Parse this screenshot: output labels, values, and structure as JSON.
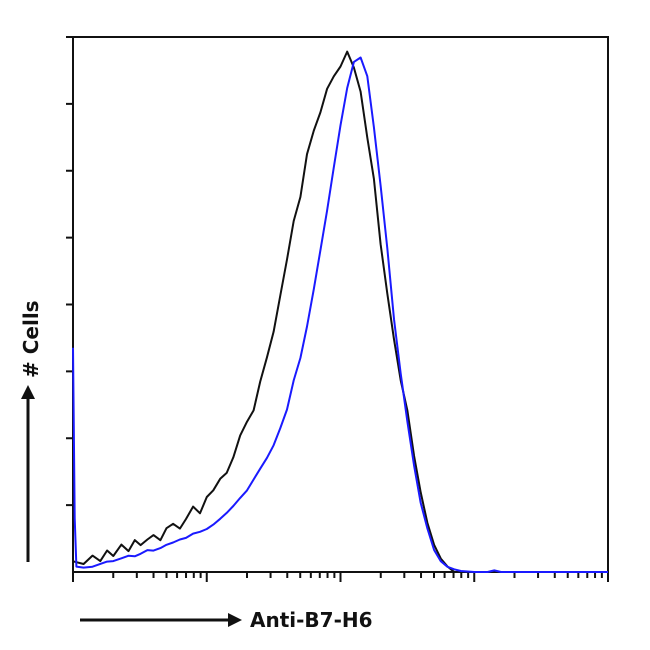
{
  "chart_data": {
    "type": "line",
    "xlabel": "Anti-B7-H6",
    "ylabel": "# Cells",
    "x_scale": "log",
    "xlim": [
      1,
      10000
    ],
    "ylim": [
      0,
      1.0
    ],
    "y_ticks": 8,
    "grid": false,
    "legend": "none",
    "series": [
      {
        "color": "#111111",
        "x": [
          1.0,
          1.2,
          1.4,
          1.6,
          1.8,
          2.0,
          2.3,
          2.6,
          2.9,
          3.2,
          3.6,
          4.0,
          4.5,
          5.0,
          5.6,
          6.3,
          7.0,
          7.9,
          8.9,
          10.0,
          11.2,
          12.6,
          14.1,
          15.8,
          17.8,
          20.0,
          22.4,
          25.1,
          28.2,
          31.6,
          35.5,
          39.8,
          44.7,
          50.1,
          56.2,
          63.1,
          70.8,
          79.4,
          89.1,
          100.0,
          112.2,
          125.9,
          141.3,
          158.5,
          177.8,
          199.5,
          223.9,
          251.2,
          281.8,
          316.2,
          354.8,
          398.1,
          446.7,
          501.2,
          562.3,
          631.0,
          707.9
        ],
        "values": [
          0.02,
          0.015,
          0.03,
          0.02,
          0.04,
          0.03,
          0.05,
          0.04,
          0.06,
          0.05,
          0.06,
          0.07,
          0.06,
          0.08,
          0.09,
          0.08,
          0.1,
          0.12,
          0.11,
          0.14,
          0.15,
          0.17,
          0.19,
          0.22,
          0.25,
          0.28,
          0.31,
          0.35,
          0.4,
          0.45,
          0.52,
          0.58,
          0.65,
          0.71,
          0.78,
          0.82,
          0.86,
          0.9,
          0.92,
          0.95,
          0.97,
          0.94,
          0.89,
          0.82,
          0.73,
          0.62,
          0.52,
          0.43,
          0.36,
          0.3,
          0.22,
          0.15,
          0.09,
          0.05,
          0.025,
          0.01,
          0.0
        ]
      },
      {
        "color": "#1a1aff",
        "x": [
          1.0,
          1.03,
          1.06,
          1.2,
          1.4,
          1.6,
          1.8,
          2.0,
          2.3,
          2.6,
          2.9,
          3.2,
          3.6,
          4.0,
          4.5,
          5.0,
          5.6,
          6.3,
          7.0,
          7.9,
          8.9,
          10.0,
          11.2,
          12.6,
          14.1,
          15.8,
          17.8,
          20.0,
          22.4,
          25.1,
          28.2,
          31.6,
          35.5,
          39.8,
          44.7,
          50.1,
          56.2,
          63.1,
          70.8,
          79.4,
          89.1,
          100.0,
          112.2,
          125.9,
          141.3,
          158.5,
          177.8,
          199.5,
          223.9,
          251.2,
          281.8,
          316.2,
          354.8,
          398.1,
          446.7,
          501.2,
          562.3,
          631.0,
          707.9,
          794.3,
          891.3,
          1000.0,
          1122.0,
          1259.0,
          1413.0,
          1585.0,
          1778.0,
          1995.0,
          2239.0,
          2512.0,
          2818.0,
          3162.0,
          3548.0,
          3981.0,
          4467.0,
          5012.0,
          5623.0,
          6310.0,
          7079.0,
          7943.0,
          8913.0,
          10000.0
        ],
        "values": [
          0.41,
          0.1,
          0.01,
          0.008,
          0.01,
          0.015,
          0.02,
          0.02,
          0.025,
          0.03,
          0.03,
          0.035,
          0.04,
          0.04,
          0.045,
          0.05,
          0.055,
          0.06,
          0.065,
          0.07,
          0.075,
          0.08,
          0.09,
          0.1,
          0.11,
          0.12,
          0.135,
          0.15,
          0.17,
          0.19,
          0.21,
          0.24,
          0.27,
          0.31,
          0.35,
          0.4,
          0.46,
          0.53,
          0.6,
          0.68,
          0.76,
          0.84,
          0.91,
          0.96,
          0.97,
          0.92,
          0.83,
          0.72,
          0.6,
          0.48,
          0.37,
          0.28,
          0.2,
          0.13,
          0.08,
          0.04,
          0.02,
          0.01,
          0.005,
          0.002,
          0.001,
          0.0,
          0.0,
          0.0,
          0.003,
          0.0,
          0.0,
          0.0,
          0.0,
          0.0,
          0.0,
          0.0,
          0.0,
          0.0,
          0.0,
          0.0,
          0.0,
          0.0,
          0.0,
          0.0,
          0.0,
          0.0
        ]
      }
    ]
  }
}
